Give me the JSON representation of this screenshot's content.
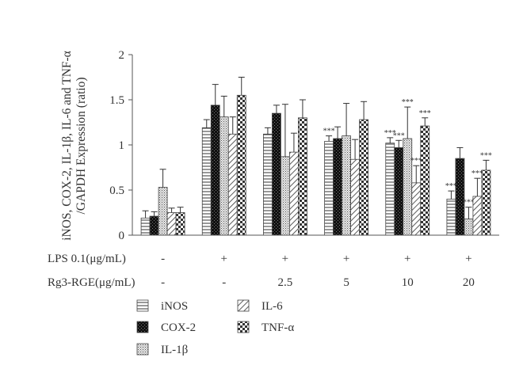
{
  "chart_data": {
    "type": "bar",
    "ylabel_line1": "iNOS, COX-2, IL-1β, IL-6 and TNF-α",
    "ylabel_line2": "/GAPDH Expression (ratio)",
    "ylim": [
      0,
      2
    ],
    "yticks": [
      "0",
      "0.5",
      "1",
      "1.5",
      "2"
    ],
    "row_labels": {
      "lps": "LPS 0.1(μg/mL)",
      "rg3": "Rg3-RGE(μg/mL)"
    },
    "groups": [
      {
        "lps": "-",
        "rg3": "-"
      },
      {
        "lps": "+",
        "rg3": "-"
      },
      {
        "lps": "+",
        "rg3": "2.5"
      },
      {
        "lps": "+",
        "rg3": "5"
      },
      {
        "lps": "+",
        "rg3": "10"
      },
      {
        "lps": "+",
        "rg3": "20"
      }
    ],
    "series": [
      {
        "name": "iNOS",
        "pattern": "hlines",
        "values": [
          0.19,
          1.19,
          1.12,
          1.04,
          1.02,
          0.4
        ],
        "errors": [
          0.08,
          0.09,
          0.07,
          0.06,
          0.06,
          0.09
        ],
        "sig": [
          "",
          "",
          "",
          "***",
          "***",
          "***"
        ]
      },
      {
        "name": "COX-2",
        "pattern": "dense",
        "values": [
          0.21,
          1.44,
          1.35,
          1.07,
          0.97,
          0.85
        ],
        "errors": [
          0.05,
          0.23,
          0.09,
          0.13,
          0.08,
          0.12
        ],
        "sig": [
          "",
          "",
          "",
          "",
          "***",
          ""
        ]
      },
      {
        "name": "IL-1β",
        "pattern": "dots",
        "values": [
          0.53,
          1.31,
          0.87,
          1.1,
          1.07,
          0.18
        ],
        "errors": [
          0.2,
          0.23,
          0.58,
          0.36,
          0.35,
          0.13
        ],
        "sig": [
          "",
          "",
          "",
          "",
          "***",
          "***"
        ]
      },
      {
        "name": "IL-6",
        "pattern": "diag",
        "values": [
          0.25,
          1.12,
          0.92,
          0.84,
          0.58,
          0.43
        ],
        "errors": [
          0.05,
          0.19,
          0.21,
          0.22,
          0.19,
          0.2
        ],
        "sig": [
          "",
          "",
          "",
          "",
          "***",
          "***"
        ]
      },
      {
        "name": "TNF-α",
        "pattern": "checker",
        "values": [
          0.25,
          1.55,
          1.3,
          1.28,
          1.21,
          0.72
        ],
        "errors": [
          0.06,
          0.2,
          0.2,
          0.2,
          0.09,
          0.11
        ],
        "sig": [
          "",
          "",
          "",
          "",
          "***",
          "***"
        ]
      }
    ]
  }
}
